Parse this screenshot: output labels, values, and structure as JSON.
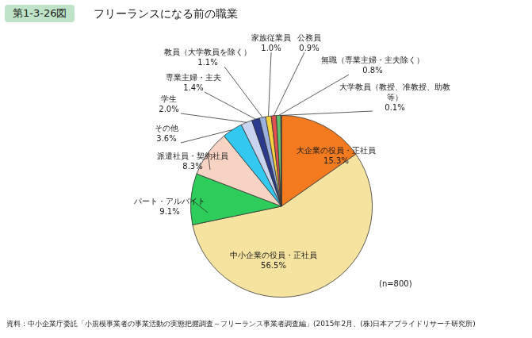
{
  "chart_data": {
    "type": "pie",
    "figure_number": "第1-3-26図",
    "title": "フリーランスになる前の職業",
    "categories": [
      "大企業の役員・正社員",
      "中小企業の役員・正社員",
      "パート・アルバイト",
      "派遣社員・契約社員",
      "その他",
      "学生",
      "専業主婦・主夫",
      "教員（大学教員を除く）",
      "家族従業員",
      "公務員",
      "無職（専業主婦・主夫除く）",
      "大学教員（教授、准教授、助教等）"
    ],
    "values": [
      15.3,
      56.5,
      9.1,
      8.3,
      3.6,
      2.0,
      1.4,
      1.1,
      1.0,
      0.9,
      0.8,
      0.1
    ],
    "value_labels": [
      "15.3%",
      "56.5%",
      "9.1%",
      "8.3%",
      "3.6%",
      "2.0%",
      "1.4%",
      "1.1%",
      "1.0%",
      "0.9%",
      "0.8%",
      "0.1%"
    ],
    "colors": [
      "#f47a20",
      "#f6e3a0",
      "#2ecc5a",
      "#f7d3c3",
      "#33c8f0",
      "#c8d4f0",
      "#2a3a8c",
      "#9ab0e0",
      "#f5d040",
      "#e05050",
      "#60c070",
      "#3060c0"
    ],
    "data_labels": true,
    "sample_size_label": "(n=800)",
    "source": "資料：中小企業庁委託「小規模事業者の事業活動の実態把握調査～フリーランス事業者調査編」(2015年2月、(株)日本アプライドリサーチ研究所)"
  }
}
